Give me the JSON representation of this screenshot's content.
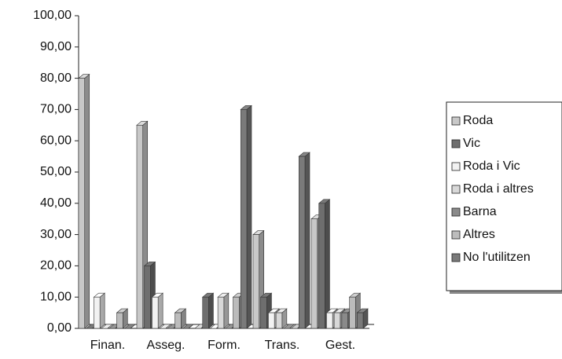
{
  "chart_data": {
    "type": "bar3d",
    "categories": [
      "Finan.",
      "Asseg.",
      "Form.",
      "Trans.",
      "Gest."
    ],
    "series": [
      {
        "name": "Roda",
        "color": "#c8c8c8",
        "values": [
          80,
          65,
          0,
          30,
          35
        ]
      },
      {
        "name": "Vic",
        "color": "#6e6e6e",
        "values": [
          0,
          20,
          10,
          10,
          40
        ]
      },
      {
        "name": "Roda i Vic",
        "color": "#f2f2f2",
        "values": [
          10,
          10,
          0,
          5,
          5
        ]
      },
      {
        "name": "Roda i altres",
        "color": "#d8d8d8",
        "values": [
          0,
          0,
          10,
          5,
          5
        ]
      },
      {
        "name": "Barna",
        "color": "#8a8a8a",
        "values": [
          0,
          0,
          0,
          0,
          5
        ]
      },
      {
        "name": "Altres",
        "color": "#bcbcbc",
        "values": [
          5,
          5,
          10,
          0,
          10
        ]
      },
      {
        "name": "No l'utilitzen",
        "color": "#7a7a7a",
        "values": [
          0,
          0,
          70,
          55,
          5
        ]
      }
    ],
    "ylim": [
      0,
      100
    ],
    "yticks": [
      {
        "value": 0,
        "label": "0,00"
      },
      {
        "value": 10,
        "label": "10,00"
      },
      {
        "value": 20,
        "label": "20,00"
      },
      {
        "value": 30,
        "label": "30,00"
      },
      {
        "value": 40,
        "label": "40,00"
      },
      {
        "value": 50,
        "label": "50,00"
      },
      {
        "value": 60,
        "label": "60,00"
      },
      {
        "value": 70,
        "label": "70,00"
      },
      {
        "value": 80,
        "label": "80,00"
      },
      {
        "value": 90,
        "label": "90,00"
      },
      {
        "value": 100,
        "label": "100,00"
      }
    ],
    "legend": "right"
  }
}
